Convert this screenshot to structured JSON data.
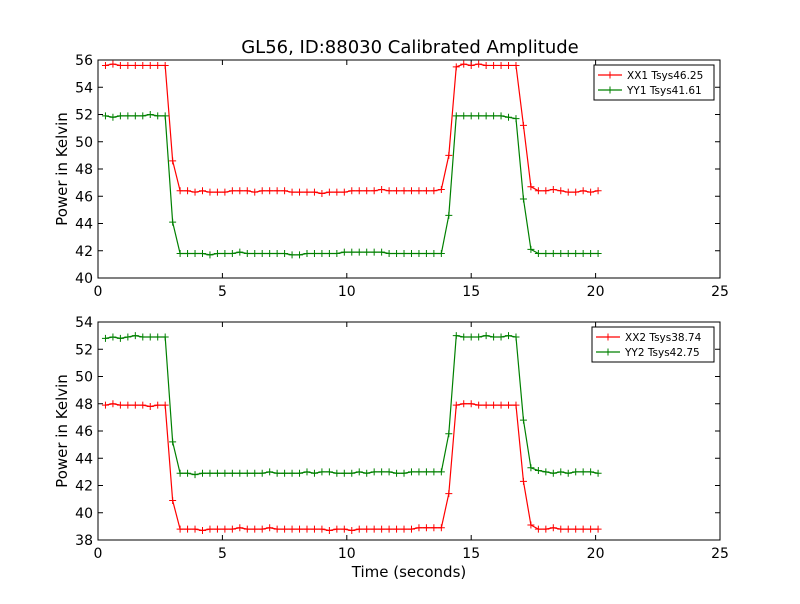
{
  "figure": {
    "title": "GL56, ID:88030 Calibrated Amplitude"
  },
  "chart_data": [
    {
      "type": "line",
      "title": "GL56, ID:88030 Calibrated Amplitude",
      "xlabel": "",
      "ylabel": "Power in Kelvin",
      "xlim": [
        0,
        25
      ],
      "ylim": [
        40,
        56
      ],
      "xticks": [
        0,
        5,
        10,
        15,
        20,
        25
      ],
      "yticks": [
        40,
        42,
        44,
        46,
        48,
        50,
        52,
        54,
        56
      ],
      "grid": false,
      "legend_position": "top-right",
      "x": [
        0.3,
        0.6,
        0.9,
        1.2,
        1.5,
        1.8,
        2.1,
        2.4,
        2.7,
        3.0,
        3.3,
        3.6,
        3.9,
        4.2,
        4.5,
        4.8,
        5.1,
        5.4,
        5.7,
        6.0,
        6.3,
        6.6,
        6.9,
        7.2,
        7.5,
        7.8,
        8.1,
        8.4,
        8.7,
        9.0,
        9.3,
        9.6,
        9.9,
        10.2,
        10.5,
        10.8,
        11.1,
        11.4,
        11.7,
        12.0,
        12.3,
        12.6,
        12.9,
        13.2,
        13.5,
        13.8,
        14.1,
        14.4,
        14.7,
        15.0,
        15.3,
        15.6,
        15.9,
        16.2,
        16.5,
        16.8,
        17.1,
        17.4,
        17.7,
        18.0,
        18.3,
        18.6,
        18.9,
        19.2,
        19.5,
        19.8,
        20.1
      ],
      "series": [
        {
          "name": "XX1 Tsys46.25",
          "color": "#ff0000",
          "values": [
            55.6,
            55.7,
            55.6,
            55.6,
            55.6,
            55.6,
            55.6,
            55.6,
            55.6,
            48.6,
            46.4,
            46.4,
            46.3,
            46.4,
            46.3,
            46.3,
            46.3,
            46.4,
            46.4,
            46.4,
            46.3,
            46.4,
            46.4,
            46.4,
            46.4,
            46.3,
            46.3,
            46.3,
            46.3,
            46.2,
            46.3,
            46.3,
            46.3,
            46.4,
            46.4,
            46.4,
            46.4,
            46.5,
            46.4,
            46.4,
            46.4,
            46.4,
            46.4,
            46.4,
            46.4,
            46.5,
            49.0,
            55.5,
            55.7,
            55.6,
            55.7,
            55.6,
            55.6,
            55.6,
            55.6,
            55.6,
            51.2,
            46.7,
            46.4,
            46.4,
            46.5,
            46.4,
            46.3,
            46.3,
            46.4,
            46.3,
            46.4
          ]
        },
        {
          "name": "YY1 Tsys41.61",
          "color": "#008000",
          "values": [
            51.9,
            51.8,
            51.9,
            51.9,
            51.9,
            51.9,
            52.0,
            51.9,
            51.9,
            44.1,
            41.8,
            41.8,
            41.8,
            41.8,
            41.7,
            41.8,
            41.8,
            41.8,
            41.9,
            41.8,
            41.8,
            41.8,
            41.8,
            41.8,
            41.8,
            41.7,
            41.7,
            41.8,
            41.8,
            41.8,
            41.8,
            41.8,
            41.9,
            41.9,
            41.9,
            41.9,
            41.9,
            41.9,
            41.8,
            41.8,
            41.8,
            41.8,
            41.8,
            41.8,
            41.8,
            41.8,
            44.6,
            51.9,
            51.9,
            51.9,
            51.9,
            51.9,
            51.9,
            51.9,
            51.8,
            51.7,
            45.8,
            42.1,
            41.8,
            41.8,
            41.8,
            41.8,
            41.8,
            41.8,
            41.8,
            41.8,
            41.8
          ]
        }
      ]
    },
    {
      "type": "line",
      "title": "",
      "xlabel": "Time (seconds)",
      "ylabel": "Power in Kelvin",
      "xlim": [
        0,
        25
      ],
      "ylim": [
        38,
        54
      ],
      "xticks": [
        0,
        5,
        10,
        15,
        20,
        25
      ],
      "yticks": [
        38,
        40,
        42,
        44,
        46,
        48,
        50,
        52,
        54
      ],
      "grid": false,
      "legend_position": "top-right",
      "x": [
        0.3,
        0.6,
        0.9,
        1.2,
        1.5,
        1.8,
        2.1,
        2.4,
        2.7,
        3.0,
        3.3,
        3.6,
        3.9,
        4.2,
        4.5,
        4.8,
        5.1,
        5.4,
        5.7,
        6.0,
        6.3,
        6.6,
        6.9,
        7.2,
        7.5,
        7.8,
        8.1,
        8.4,
        8.7,
        9.0,
        9.3,
        9.6,
        9.9,
        10.2,
        10.5,
        10.8,
        11.1,
        11.4,
        11.7,
        12.0,
        12.3,
        12.6,
        12.9,
        13.2,
        13.5,
        13.8,
        14.1,
        14.4,
        14.7,
        15.0,
        15.3,
        15.6,
        15.9,
        16.2,
        16.5,
        16.8,
        17.1,
        17.4,
        17.7,
        18.0,
        18.3,
        18.6,
        18.9,
        19.2,
        19.5,
        19.8,
        20.1
      ],
      "series": [
        {
          "name": "XX2 Tsys38.74",
          "color": "#ff0000",
          "values": [
            47.9,
            48.0,
            47.9,
            47.9,
            47.9,
            47.9,
            47.8,
            47.9,
            47.9,
            40.9,
            38.8,
            38.8,
            38.8,
            38.7,
            38.8,
            38.8,
            38.8,
            38.8,
            38.9,
            38.8,
            38.8,
            38.8,
            38.9,
            38.8,
            38.8,
            38.8,
            38.8,
            38.8,
            38.8,
            38.8,
            38.7,
            38.8,
            38.8,
            38.7,
            38.8,
            38.8,
            38.8,
            38.8,
            38.8,
            38.8,
            38.8,
            38.8,
            38.9,
            38.9,
            38.9,
            38.9,
            41.4,
            47.9,
            48.0,
            48.0,
            47.9,
            47.9,
            47.9,
            47.9,
            47.9,
            47.9,
            42.3,
            39.1,
            38.8,
            38.8,
            38.9,
            38.8,
            38.8,
            38.8,
            38.8,
            38.8,
            38.8
          ]
        },
        {
          "name": "YY2 Tsys42.75",
          "color": "#008000",
          "values": [
            52.8,
            52.9,
            52.8,
            52.9,
            53.0,
            52.9,
            52.9,
            52.9,
            52.9,
            45.2,
            42.9,
            42.9,
            42.8,
            42.9,
            42.9,
            42.9,
            42.9,
            42.9,
            42.9,
            42.9,
            42.9,
            42.9,
            43.0,
            42.9,
            42.9,
            42.9,
            42.9,
            43.0,
            42.9,
            43.0,
            43.0,
            42.9,
            42.9,
            42.9,
            43.0,
            42.9,
            43.0,
            43.0,
            43.0,
            42.9,
            42.9,
            43.0,
            43.0,
            43.0,
            43.0,
            43.0,
            45.8,
            53.0,
            52.9,
            52.9,
            52.9,
            53.0,
            52.9,
            52.9,
            53.0,
            52.9,
            46.8,
            43.3,
            43.1,
            43.0,
            42.9,
            43.0,
            42.9,
            43.0,
            43.0,
            43.0,
            42.9
          ]
        }
      ]
    }
  ]
}
